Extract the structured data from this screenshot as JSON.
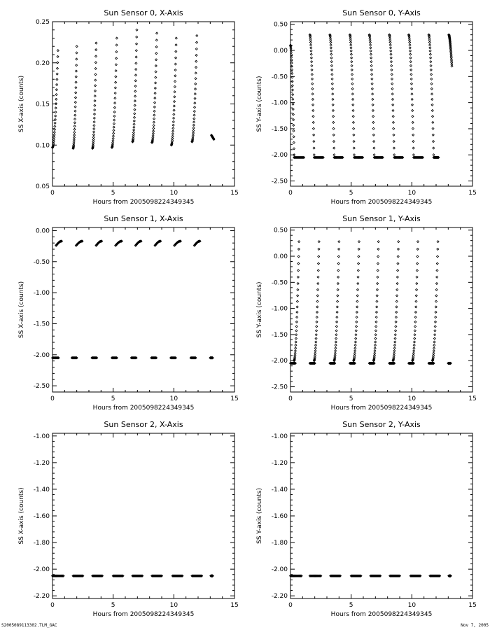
{
  "footer": {
    "left": "S2005089113302.TLM_GAC",
    "right": "Nov 7, 2005"
  },
  "chart_data": [
    {
      "type": "scatter",
      "title": "Sun Sensor 0, X-Axis",
      "xlabel": "Hours from 2005098224349345",
      "ylabel": "SS X-axis (counts)",
      "xlim": [
        0,
        15
      ],
      "ylim": [
        0.05,
        0.25
      ],
      "xticks": [
        0,
        5,
        10,
        15
      ],
      "yticks": [
        0.05,
        0.1,
        0.15,
        0.2,
        0.25
      ],
      "ytick_labels": [
        "0.05",
        "0.10",
        "0.15",
        "0.20",
        "0.25"
      ],
      "series": [
        {
          "marker": "diamond",
          "segments": [
            {
              "x0": 0.0,
              "x1": 0.45,
              "y0": 0.097,
              "y1": 0.215,
              "shape": "rise"
            },
            {
              "x0": 1.7,
              "x1": 2.0,
              "y0": 0.096,
              "y1": 0.22,
              "shape": "rise"
            },
            {
              "x0": 3.3,
              "x1": 3.6,
              "y0": 0.096,
              "y1": 0.224,
              "shape": "rise"
            },
            {
              "x0": 4.9,
              "x1": 5.3,
              "y0": 0.097,
              "y1": 0.23,
              "shape": "rise"
            },
            {
              "x0": 6.6,
              "x1": 6.95,
              "y0": 0.104,
              "y1": 0.24,
              "shape": "rise"
            },
            {
              "x0": 8.2,
              "x1": 8.6,
              "y0": 0.103,
              "y1": 0.236,
              "shape": "rise"
            },
            {
              "x0": 9.8,
              "x1": 10.2,
              "y0": 0.1,
              "y1": 0.23,
              "shape": "rise"
            },
            {
              "x0": 11.5,
              "x1": 11.9,
              "y0": 0.104,
              "y1": 0.233,
              "shape": "rise"
            },
            {
              "x0": 13.1,
              "x1": 13.3,
              "y0": 0.112,
              "y1": 0.107,
              "shape": "flat"
            }
          ]
        }
      ]
    },
    {
      "type": "scatter",
      "title": "Sun Sensor 0, Y-Axis",
      "xlabel": "Hours from 2005098224349345",
      "ylabel": "SS Y-axis (counts)",
      "xlim": [
        0,
        15
      ],
      "ylim": [
        -2.6,
        0.55
      ],
      "xticks": [
        0,
        5,
        10,
        15
      ],
      "yticks": [
        -2.5,
        -2.0,
        -1.5,
        -1.0,
        -0.5,
        0.0,
        0.5
      ],
      "ytick_labels": [
        "-2.50",
        "-2.00",
        "-1.50",
        "-1.00",
        "-0.50",
        "0.00",
        "0.50"
      ],
      "series": [
        {
          "marker": "diamond",
          "segments": [
            {
              "x0": 0.0,
              "x1": 0.3,
              "y0": 0.1,
              "y1": -2.0,
              "shape": "fall"
            },
            {
              "x0": 1.6,
              "x1": 1.95,
              "y0": 0.3,
              "y1": -2.0,
              "shape": "fall"
            },
            {
              "x0": 3.25,
              "x1": 3.6,
              "y0": 0.3,
              "y1": -2.0,
              "shape": "fall"
            },
            {
              "x0": 4.9,
              "x1": 5.25,
              "y0": 0.3,
              "y1": -2.0,
              "shape": "fall"
            },
            {
              "x0": 6.5,
              "x1": 6.9,
              "y0": 0.3,
              "y1": -2.0,
              "shape": "fall"
            },
            {
              "x0": 8.15,
              "x1": 8.55,
              "y0": 0.3,
              "y1": -2.0,
              "shape": "fall"
            },
            {
              "x0": 9.75,
              "x1": 10.15,
              "y0": 0.3,
              "y1": -2.0,
              "shape": "fall"
            },
            {
              "x0": 11.4,
              "x1": 11.8,
              "y0": 0.3,
              "y1": -2.0,
              "shape": "fall"
            },
            {
              "x0": 13.05,
              "x1": 13.3,
              "y0": 0.3,
              "y1": -0.3,
              "shape": "fall"
            },
            {
              "x0": 0.3,
              "x1": 1.1,
              "y0": -2.05,
              "y1": -2.05,
              "shape": "flat"
            },
            {
              "x0": 1.95,
              "x1": 2.7,
              "y0": -2.05,
              "y1": -2.05,
              "shape": "flat"
            },
            {
              "x0": 3.6,
              "x1": 4.3,
              "y0": -2.05,
              "y1": -2.05,
              "shape": "flat"
            },
            {
              "x0": 5.25,
              "x1": 5.95,
              "y0": -2.05,
              "y1": -2.05,
              "shape": "flat"
            },
            {
              "x0": 6.9,
              "x1": 7.6,
              "y0": -2.05,
              "y1": -2.05,
              "shape": "flat"
            },
            {
              "x0": 8.55,
              "x1": 9.25,
              "y0": -2.05,
              "y1": -2.05,
              "shape": "flat"
            },
            {
              "x0": 10.15,
              "x1": 10.9,
              "y0": -2.05,
              "y1": -2.05,
              "shape": "flat"
            },
            {
              "x0": 11.8,
              "x1": 12.2,
              "y0": -2.05,
              "y1": -2.05,
              "shape": "flat"
            }
          ]
        }
      ]
    },
    {
      "type": "scatter",
      "title": "Sun Sensor 1, X-Axis",
      "xlabel": "Hours from 2005098224349345",
      "ylabel": "SS X-axis (counts)",
      "xlim": [
        0,
        15
      ],
      "ylim": [
        -2.6,
        0.05
      ],
      "xticks": [
        0,
        5,
        10,
        15
      ],
      "yticks": [
        -2.5,
        -2.0,
        -1.5,
        -1.0,
        -0.5,
        0.0
      ],
      "ytick_labels": [
        "-2.50",
        "-2.00",
        "-1.50",
        "-1.00",
        "-0.50",
        "0.00"
      ],
      "series": [
        {
          "marker": "diamond",
          "segments": [
            {
              "x0": 0.3,
              "x1": 0.75,
              "y0": -0.24,
              "y1": -0.17,
              "shape": "arc"
            },
            {
              "x0": 1.95,
              "x1": 2.45,
              "y0": -0.24,
              "y1": -0.17,
              "shape": "arc"
            },
            {
              "x0": 3.6,
              "x1": 4.05,
              "y0": -0.24,
              "y1": -0.17,
              "shape": "arc"
            },
            {
              "x0": 5.2,
              "x1": 5.7,
              "y0": -0.24,
              "y1": -0.17,
              "shape": "arc"
            },
            {
              "x0": 6.85,
              "x1": 7.3,
              "y0": -0.24,
              "y1": -0.17,
              "shape": "arc"
            },
            {
              "x0": 8.45,
              "x1": 8.9,
              "y0": -0.24,
              "y1": -0.17,
              "shape": "arc"
            },
            {
              "x0": 10.05,
              "x1": 10.55,
              "y0": -0.24,
              "y1": -0.17,
              "shape": "arc"
            },
            {
              "x0": 11.7,
              "x1": 12.15,
              "y0": -0.24,
              "y1": -0.17,
              "shape": "arc"
            },
            {
              "x0": 0.0,
              "x1": 0.5,
              "y0": -2.05,
              "y1": -2.05,
              "shape": "flat"
            },
            {
              "x0": 1.6,
              "x1": 2.0,
              "y0": -2.05,
              "y1": -2.05,
              "shape": "flat"
            },
            {
              "x0": 3.25,
              "x1": 3.65,
              "y0": -2.05,
              "y1": -2.05,
              "shape": "flat"
            },
            {
              "x0": 4.9,
              "x1": 5.3,
              "y0": -2.05,
              "y1": -2.05,
              "shape": "flat"
            },
            {
              "x0": 6.5,
              "x1": 6.9,
              "y0": -2.05,
              "y1": -2.05,
              "shape": "flat"
            },
            {
              "x0": 8.15,
              "x1": 8.55,
              "y0": -2.05,
              "y1": -2.05,
              "shape": "flat"
            },
            {
              "x0": 9.75,
              "x1": 10.15,
              "y0": -2.05,
              "y1": -2.05,
              "shape": "flat"
            },
            {
              "x0": 11.4,
              "x1": 11.8,
              "y0": -2.05,
              "y1": -2.05,
              "shape": "flat"
            },
            {
              "x0": 13.0,
              "x1": 13.2,
              "y0": -2.05,
              "y1": -2.05,
              "shape": "flat"
            }
          ]
        }
      ]
    },
    {
      "type": "scatter",
      "title": "Sun Sensor 1, Y-Axis",
      "xlabel": "Hours from 2005098224349345",
      "ylabel": "SS Y-axis (counts)",
      "xlim": [
        0,
        15
      ],
      "ylim": [
        -2.6,
        0.55
      ],
      "xticks": [
        0,
        5,
        10,
        15
      ],
      "yticks": [
        -2.5,
        -2.0,
        -1.5,
        -1.0,
        -0.5,
        0.0,
        0.5
      ],
      "ytick_labels": [
        "-2.50",
        "-2.00",
        "-1.50",
        "-1.00",
        "-0.50",
        "0.00",
        "0.50"
      ],
      "series": [
        {
          "marker": "diamond",
          "segments": [
            {
              "x0": 0.3,
              "x1": 0.7,
              "y0": -2.0,
              "y1": 0.28,
              "shape": "rise"
            },
            {
              "x0": 1.95,
              "x1": 2.35,
              "y0": -2.0,
              "y1": 0.28,
              "shape": "rise"
            },
            {
              "x0": 3.6,
              "x1": 4.0,
              "y0": -2.0,
              "y1": 0.28,
              "shape": "rise"
            },
            {
              "x0": 5.2,
              "x1": 5.65,
              "y0": -2.0,
              "y1": 0.28,
              "shape": "rise"
            },
            {
              "x0": 6.85,
              "x1": 7.25,
              "y0": -2.0,
              "y1": 0.28,
              "shape": "rise"
            },
            {
              "x0": 8.45,
              "x1": 8.9,
              "y0": -2.0,
              "y1": 0.28,
              "shape": "rise"
            },
            {
              "x0": 10.05,
              "x1": 10.5,
              "y0": -2.0,
              "y1": 0.28,
              "shape": "rise"
            },
            {
              "x0": 11.7,
              "x1": 12.15,
              "y0": -2.0,
              "y1": 0.28,
              "shape": "rise"
            },
            {
              "x0": 0.0,
              "x1": 0.4,
              "y0": -2.05,
              "y1": -2.05,
              "shape": "flat"
            },
            {
              "x0": 1.6,
              "x1": 2.0,
              "y0": -2.05,
              "y1": -2.05,
              "shape": "flat"
            },
            {
              "x0": 3.25,
              "x1": 3.65,
              "y0": -2.05,
              "y1": -2.05,
              "shape": "flat"
            },
            {
              "x0": 4.9,
              "x1": 5.3,
              "y0": -2.05,
              "y1": -2.05,
              "shape": "flat"
            },
            {
              "x0": 6.5,
              "x1": 6.9,
              "y0": -2.05,
              "y1": -2.05,
              "shape": "flat"
            },
            {
              "x0": 8.15,
              "x1": 8.55,
              "y0": -2.05,
              "y1": -2.05,
              "shape": "flat"
            },
            {
              "x0": 9.75,
              "x1": 10.15,
              "y0": -2.05,
              "y1": -2.05,
              "shape": "flat"
            },
            {
              "x0": 11.4,
              "x1": 11.8,
              "y0": -2.05,
              "y1": -2.05,
              "shape": "flat"
            },
            {
              "x0": 13.0,
              "x1": 13.2,
              "y0": -2.05,
              "y1": -2.05,
              "shape": "flat"
            }
          ]
        }
      ]
    },
    {
      "type": "scatter",
      "title": "Sun Sensor 2, X-Axis",
      "xlabel": "Hours from 2005098224349345",
      "ylabel": "SS X-axis (counts)",
      "xlim": [
        0,
        15
      ],
      "ylim": [
        -2.22,
        -0.98
      ],
      "xticks": [
        0,
        5,
        10,
        15
      ],
      "yticks": [
        -2.2,
        -2.0,
        -1.8,
        -1.6,
        -1.4,
        -1.2,
        -1.0
      ],
      "ytick_labels": [
        "-2.20",
        "-2.00",
        "-1.80",
        "-1.60",
        "-1.40",
        "-1.20",
        "-1.00"
      ],
      "series": [
        {
          "marker": "diamond",
          "segments": [
            {
              "x0": 0.0,
              "x1": 0.9,
              "y0": -2.05,
              "y1": -2.05,
              "shape": "flat"
            },
            {
              "x0": 1.7,
              "x1": 2.5,
              "y0": -2.05,
              "y1": -2.05,
              "shape": "flat"
            },
            {
              "x0": 3.3,
              "x1": 4.1,
              "y0": -2.05,
              "y1": -2.05,
              "shape": "flat"
            },
            {
              "x0": 5.0,
              "x1": 5.8,
              "y0": -2.05,
              "y1": -2.05,
              "shape": "flat"
            },
            {
              "x0": 6.6,
              "x1": 7.4,
              "y0": -2.05,
              "y1": -2.05,
              "shape": "flat"
            },
            {
              "x0": 8.2,
              "x1": 9.0,
              "y0": -2.05,
              "y1": -2.05,
              "shape": "flat"
            },
            {
              "x0": 9.9,
              "x1": 10.7,
              "y0": -2.05,
              "y1": -2.05,
              "shape": "flat"
            },
            {
              "x0": 11.5,
              "x1": 12.3,
              "y0": -2.05,
              "y1": -2.05,
              "shape": "flat"
            },
            {
              "x0": 13.05,
              "x1": 13.2,
              "y0": -2.05,
              "y1": -2.05,
              "shape": "flat"
            }
          ]
        }
      ]
    },
    {
      "type": "scatter",
      "title": "Sun Sensor 2, Y-Axis",
      "xlabel": "Hours from 2005098224349345",
      "ylabel": "SS Y-axis (counts)",
      "xlim": [
        0,
        15
      ],
      "ylim": [
        -2.22,
        -0.98
      ],
      "xticks": [
        0,
        5,
        10,
        15
      ],
      "yticks": [
        -2.2,
        -2.0,
        -1.8,
        -1.6,
        -1.4,
        -1.2,
        -1.0
      ],
      "ytick_labels": [
        "-2.20",
        "-2.00",
        "-1.80",
        "-1.60",
        "-1.40",
        "-1.20",
        "-1.00"
      ],
      "series": [
        {
          "marker": "diamond",
          "segments": [
            {
              "x0": 0.0,
              "x1": 0.9,
              "y0": -2.05,
              "y1": -2.05,
              "shape": "flat"
            },
            {
              "x0": 1.6,
              "x1": 2.5,
              "y0": -2.05,
              "y1": -2.05,
              "shape": "flat"
            },
            {
              "x0": 3.3,
              "x1": 4.1,
              "y0": -2.05,
              "y1": -2.05,
              "shape": "flat"
            },
            {
              "x0": 5.0,
              "x1": 5.8,
              "y0": -2.05,
              "y1": -2.05,
              "shape": "flat"
            },
            {
              "x0": 6.6,
              "x1": 7.4,
              "y0": -2.05,
              "y1": -2.05,
              "shape": "flat"
            },
            {
              "x0": 8.2,
              "x1": 9.0,
              "y0": -2.05,
              "y1": -2.05,
              "shape": "flat"
            },
            {
              "x0": 9.9,
              "x1": 10.7,
              "y0": -2.05,
              "y1": -2.05,
              "shape": "flat"
            },
            {
              "x0": 11.5,
              "x1": 12.3,
              "y0": -2.05,
              "y1": -2.05,
              "shape": "flat"
            },
            {
              "x0": 13.05,
              "x1": 13.2,
              "y0": -2.05,
              "y1": -2.05,
              "shape": "flat"
            }
          ]
        }
      ]
    }
  ]
}
